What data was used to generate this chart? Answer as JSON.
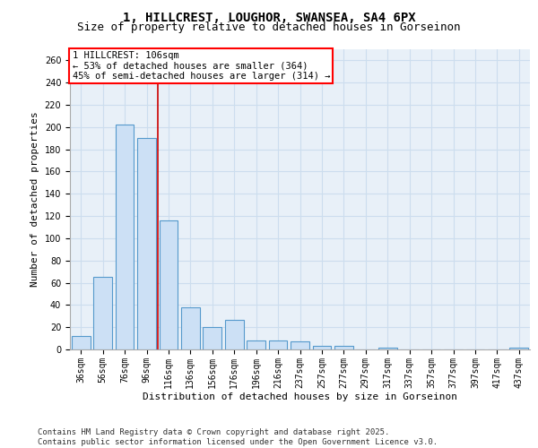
{
  "title_line1": "1, HILLCREST, LOUGHOR, SWANSEA, SA4 6PX",
  "title_line2": "Size of property relative to detached houses in Gorseinon",
  "xlabel": "Distribution of detached houses by size in Gorseinon",
  "ylabel": "Number of detached properties",
  "categories": [
    "36sqm",
    "56sqm",
    "76sqm",
    "96sqm",
    "116sqm",
    "136sqm",
    "156sqm",
    "176sqm",
    "196sqm",
    "216sqm",
    "237sqm",
    "257sqm",
    "277sqm",
    "297sqm",
    "317sqm",
    "337sqm",
    "357sqm",
    "377sqm",
    "397sqm",
    "417sqm",
    "437sqm"
  ],
  "values": [
    12,
    65,
    202,
    190,
    116,
    38,
    20,
    27,
    8,
    8,
    7,
    3,
    3,
    0,
    2,
    0,
    0,
    0,
    0,
    0,
    2
  ],
  "bar_color": "#cce0f5",
  "bar_edge_color": "#5599cc",
  "vline_color": "#cc0000",
  "annotation_text_line1": "1 HILLCREST: 106sqm",
  "annotation_text_line2": "← 53% of detached houses are smaller (364)",
  "annotation_text_line3": "45% of semi-detached houses are larger (314) →",
  "ylim": [
    0,
    270
  ],
  "yticks": [
    0,
    20,
    40,
    60,
    80,
    100,
    120,
    140,
    160,
    180,
    200,
    220,
    240,
    260
  ],
  "grid_color": "#ccddee",
  "background_color": "#e8f0f8",
  "footer_line1": "Contains HM Land Registry data © Crown copyright and database right 2025.",
  "footer_line2": "Contains public sector information licensed under the Open Government Licence v3.0.",
  "title_fontsize": 10,
  "subtitle_fontsize": 9,
  "axis_label_fontsize": 8,
  "tick_fontsize": 7,
  "annotation_fontsize": 7.5,
  "footer_fontsize": 6.5
}
